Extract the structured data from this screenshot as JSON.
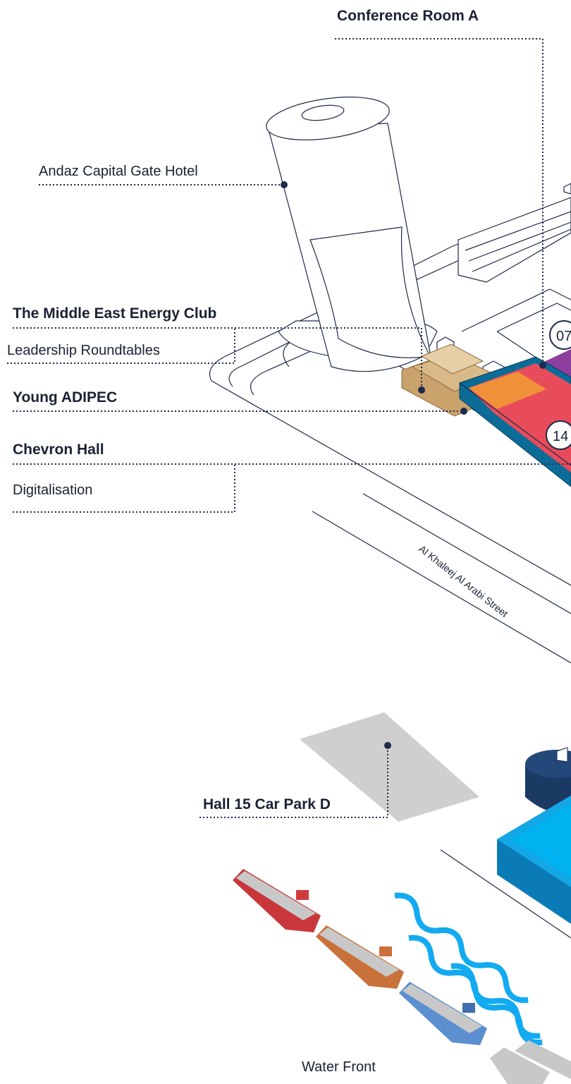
{
  "callouts": [
    {
      "title": "Conference Room A"
    },
    {
      "title": "Andaz Capital Gate Hotel"
    },
    {
      "title": "The Middle East Energy Club",
      "subtitle": "Leadership Roundtables"
    },
    {
      "title": "Young ADIPEC"
    },
    {
      "title": "Chevron Hall",
      "subtitle": "Digitalisation"
    },
    {
      "title": "Hall 15 Car Park D"
    }
  ],
  "street": "Al Khaleej Al Arabi Street",
  "water": "Water Front",
  "badges": [
    "07",
    "14"
  ]
}
